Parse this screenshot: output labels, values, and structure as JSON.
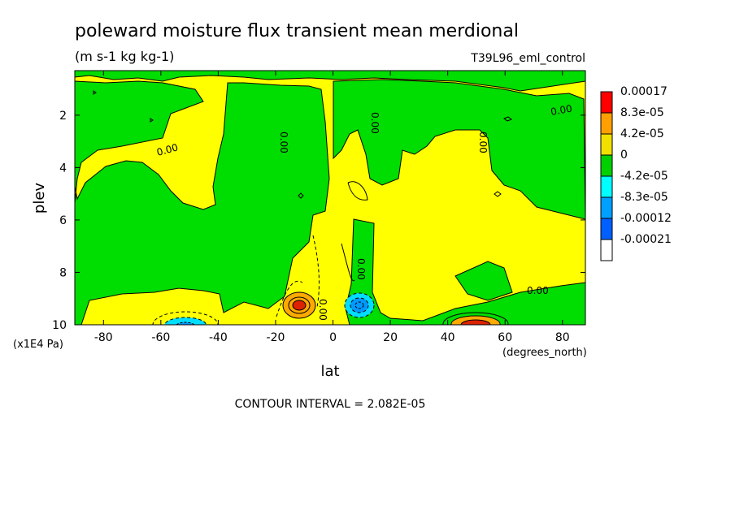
{
  "chart_data": {
    "type": "heatmap",
    "title": "poleward moisture flux transient mean merdional",
    "units": "(m s-1 kg kg-1)",
    "dataset": "T39L96_eml_control",
    "xlabel": "lat",
    "xunits": "(degrees_north)",
    "ylabel": "plev",
    "yunits": "(x1E4 Pa)",
    "xlim": [
      -90,
      88
    ],
    "ylim": [
      10,
      0.3
    ],
    "x_ticks": [
      "-80",
      "-60",
      "-40",
      "-20",
      "0",
      "20",
      "40",
      "60",
      "80"
    ],
    "y_ticks": [
      "2",
      "4",
      "6",
      "8",
      "10"
    ],
    "contour_interval_text": "CONTOUR INTERVAL = 2.082E-05",
    "contour_label": "0.00",
    "legend": {
      "placement": "right",
      "levels": [
        "0.00017",
        "8.3e-05",
        "4.2e-05",
        "0",
        "-4.2e-05",
        "-8.3e-05",
        "-0.00012",
        "-0.00021"
      ],
      "colors": [
        "#ff0000",
        "#ffa000",
        "#f0e000",
        "#00d000",
        "#00ffff",
        "#00a0ff",
        "#0060ff",
        "#ffffff"
      ]
    },
    "fill_colors": {
      "positive_weak": "#ffff00",
      "negative_weak": "#00dd00",
      "positive_mid": "#ffaa00",
      "positive_strong": "#dd2200",
      "negative_mid": "#00ddff",
      "negative_strong": "#0099ff"
    },
    "extrema": [
      {
        "lat": -11,
        "plev": 9.2,
        "sign": "positive"
      },
      {
        "lat": 10,
        "plev": 9.2,
        "sign": "negative"
      },
      {
        "lat": 48,
        "plev": 9.9,
        "sign": "positive"
      },
      {
        "lat": -50,
        "plev": 9.9,
        "sign": "negative"
      }
    ]
  }
}
